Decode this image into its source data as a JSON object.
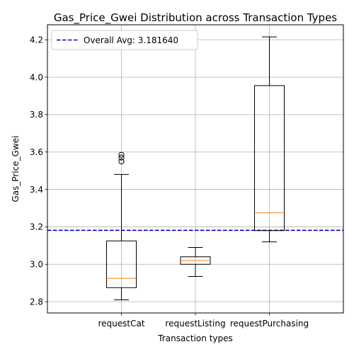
{
  "chart_data": {
    "type": "box",
    "title": "Gas_Price_Gwei Distribution across Transaction Types",
    "xlabel": "Transaction types",
    "ylabel": "Gas_Price_Gwei",
    "ylim": [
      2.74,
      4.28
    ],
    "yticks": [
      2.8,
      3.0,
      3.2,
      3.4,
      3.6,
      3.8,
      4.0,
      4.2
    ],
    "ytick_labels": [
      "2.8",
      "3.0",
      "3.2",
      "3.4",
      "3.6",
      "3.8",
      "4.0",
      "4.2"
    ],
    "grid": true,
    "categories": [
      "requestCat",
      "requestListing",
      "requestPurchasing"
    ],
    "boxes": [
      {
        "category": "requestCat",
        "whisker_low": 2.81,
        "q1": 2.875,
        "median": 2.925,
        "q3": 3.125,
        "whisker_high": 3.48,
        "outliers": [
          3.55,
          3.57,
          3.585
        ]
      },
      {
        "category": "requestListing",
        "whisker_low": 2.935,
        "q1": 3.0,
        "median": 3.02,
        "q3": 3.04,
        "whisker_high": 3.09,
        "outliers": []
      },
      {
        "category": "requestPurchasing",
        "whisker_low": 3.12,
        "q1": 3.18,
        "median": 3.275,
        "q3": 3.955,
        "whisker_high": 4.215,
        "outliers": []
      }
    ],
    "reference_line": {
      "value": 3.18164,
      "label": "Overall Avg: 3.181640",
      "color": "#0000bb",
      "style": "dashed"
    },
    "legend": {
      "placement": "top-left",
      "entries": [
        "Overall Avg: 3.181640"
      ]
    },
    "colors": {
      "box": "#000000",
      "median": "#ff7f0e",
      "grid": "#b0b0b0"
    }
  }
}
